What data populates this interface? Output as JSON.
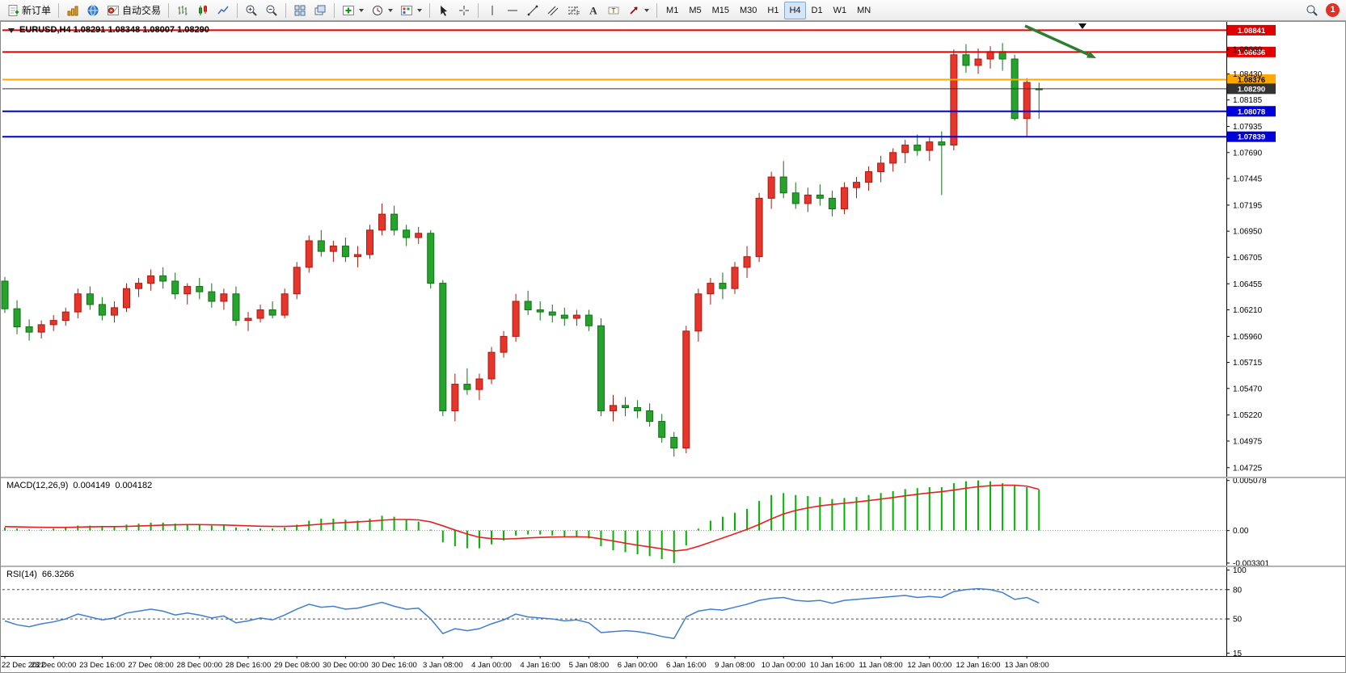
{
  "toolbar": {
    "new_order_label": "新订单",
    "auto_trading_label": "自动交易",
    "timeframes": [
      "M1",
      "M5",
      "M15",
      "M30",
      "H1",
      "H4",
      "D1",
      "W1",
      "MN"
    ],
    "active_timeframe": "H4",
    "notification_badge": "1"
  },
  "chart": {
    "title": "EURUSD,H4 1.08291 1.08348 1.08007 1.08290",
    "macd_label": "MACD(12,26,9)",
    "macd_value_main": "0.004149",
    "macd_value_signal": "0.004182",
    "rsi_label": "RSI(14)",
    "rsi_value": "66.3266"
  },
  "chart_data": {
    "type": "candlestick",
    "symbol": "EURUSD",
    "period": "H4",
    "current_bar": {
      "open": 1.08291,
      "high": 1.08348,
      "low": 1.08007,
      "close": 1.0829
    },
    "price_range": [
      1.0464,
      1.0892
    ],
    "up_color": "#e6352b",
    "up_stroke": "#ab1a10",
    "down_color": "#25a32d",
    "down_stroke": "#127016",
    "candles": [
      [
        1.0648,
        1.0652,
        1.0618,
        1.0622
      ],
      [
        1.0622,
        1.063,
        1.0598,
        1.0605
      ],
      [
        1.0605,
        1.0612,
        1.0592,
        1.06
      ],
      [
        1.06,
        1.0611,
        1.0594,
        1.0607
      ],
      [
        1.0607,
        1.0616,
        1.0601,
        1.0611
      ],
      [
        1.0611,
        1.0623,
        1.0606,
        1.0619
      ],
      [
        1.0619,
        1.0641,
        1.0613,
        1.0636
      ],
      [
        1.0636,
        1.0643,
        1.0621,
        1.0626
      ],
      [
        1.0626,
        1.0633,
        1.0611,
        1.0616
      ],
      [
        1.0616,
        1.0629,
        1.0609,
        1.0623
      ],
      [
        1.0623,
        1.0646,
        1.0619,
        1.0641
      ],
      [
        1.0641,
        1.0651,
        1.0633,
        1.0646
      ],
      [
        1.0646,
        1.0659,
        1.0639,
        1.0653
      ],
      [
        1.0653,
        1.0661,
        1.0641,
        1.0648
      ],
      [
        1.0648,
        1.0656,
        1.0631,
        1.0636
      ],
      [
        1.0636,
        1.0646,
        1.0626,
        1.0643
      ],
      [
        1.0643,
        1.0651,
        1.0631,
        1.0638
      ],
      [
        1.0638,
        1.0646,
        1.0623,
        1.0629
      ],
      [
        1.0629,
        1.0641,
        1.0621,
        1.0636
      ],
      [
        1.0636,
        1.0643,
        1.0606,
        1.0611
      ],
      [
        1.0611,
        1.0619,
        1.0601,
        1.0613
      ],
      [
        1.0613,
        1.0626,
        1.0609,
        1.0621
      ],
      [
        1.0621,
        1.0629,
        1.0613,
        1.0616
      ],
      [
        1.0616,
        1.0641,
        1.0613,
        1.0636
      ],
      [
        1.0636,
        1.0666,
        1.0631,
        1.0661
      ],
      [
        1.0661,
        1.0691,
        1.0656,
        1.0686
      ],
      [
        1.0686,
        1.0696,
        1.0671,
        1.0676
      ],
      [
        1.0676,
        1.0686,
        1.0666,
        1.0681
      ],
      [
        1.0681,
        1.0689,
        1.0666,
        1.0671
      ],
      [
        1.0671,
        1.0681,
        1.0661,
        1.0673
      ],
      [
        1.0673,
        1.0701,
        1.0669,
        1.0696
      ],
      [
        1.0696,
        1.0721,
        1.0691,
        1.0711
      ],
      [
        1.0711,
        1.0719,
        1.0691,
        1.0696
      ],
      [
        1.0696,
        1.0701,
        1.0681,
        1.0689
      ],
      [
        1.0689,
        1.0699,
        1.0683,
        1.0693
      ],
      [
        1.0693,
        1.0696,
        1.0641,
        1.0646
      ],
      [
        1.0646,
        1.0649,
        1.0521,
        1.0526
      ],
      [
        1.0526,
        1.0561,
        1.0516,
        1.0551
      ],
      [
        1.0551,
        1.0566,
        1.0541,
        1.0546
      ],
      [
        1.0546,
        1.0561,
        1.0536,
        1.0556
      ],
      [
        1.0556,
        1.0586,
        1.0551,
        1.0581
      ],
      [
        1.0581,
        1.0601,
        1.0576,
        1.0596
      ],
      [
        1.0596,
        1.0636,
        1.0591,
        1.0629
      ],
      [
        1.0629,
        1.0639,
        1.0616,
        1.0621
      ],
      [
        1.0621,
        1.0629,
        1.0611,
        1.0619
      ],
      [
        1.0619,
        1.0626,
        1.0609,
        1.0616
      ],
      [
        1.0616,
        1.0623,
        1.0606,
        1.0613
      ],
      [
        1.0613,
        1.0621,
        1.0606,
        1.0616
      ],
      [
        1.0616,
        1.0621,
        1.0601,
        1.0606
      ],
      [
        1.0606,
        1.0613,
        1.0521,
        1.0526
      ],
      [
        1.0526,
        1.0541,
        1.0516,
        1.0531
      ],
      [
        1.0531,
        1.0539,
        1.0521,
        1.0529
      ],
      [
        1.0529,
        1.0536,
        1.0519,
        1.0526
      ],
      [
        1.0526,
        1.0533,
        1.0511,
        1.0516
      ],
      [
        1.0516,
        1.0523,
        1.0496,
        1.0501
      ],
      [
        1.0501,
        1.0506,
        1.0483,
        1.0491
      ],
      [
        1.0491,
        1.0606,
        1.0486,
        1.0601
      ],
      [
        1.0601,
        1.0641,
        1.0591,
        1.0636
      ],
      [
        1.0636,
        1.0651,
        1.0626,
        1.0646
      ],
      [
        1.0646,
        1.0656,
        1.0631,
        1.0641
      ],
      [
        1.0641,
        1.0666,
        1.0636,
        1.0661
      ],
      [
        1.0661,
        1.0681,
        1.0651,
        1.0671
      ],
      [
        1.0671,
        1.0731,
        1.0666,
        1.0726
      ],
      [
        1.0726,
        1.0751,
        1.0716,
        1.0746
      ],
      [
        1.0746,
        1.0761,
        1.0726,
        1.0731
      ],
      [
        1.0731,
        1.0741,
        1.0716,
        1.0721
      ],
      [
        1.0721,
        1.0736,
        1.0713,
        1.0729
      ],
      [
        1.0729,
        1.0739,
        1.0719,
        1.0726
      ],
      [
        1.0726,
        1.0733,
        1.0709,
        1.0716
      ],
      [
        1.0716,
        1.0741,
        1.0711,
        1.0736
      ],
      [
        1.0736,
        1.0746,
        1.0726,
        1.0741
      ],
      [
        1.0741,
        1.0756,
        1.0733,
        1.0751
      ],
      [
        1.0751,
        1.0766,
        1.0741,
        1.0759
      ],
      [
        1.0759,
        1.0773,
        1.0751,
        1.0769
      ],
      [
        1.0769,
        1.0781,
        1.0759,
        1.0776
      ],
      [
        1.0776,
        1.0786,
        1.0766,
        1.0771
      ],
      [
        1.0771,
        1.0783,
        1.0761,
        1.0779
      ],
      [
        1.0779,
        1.0789,
        1.0729,
        1.0776
      ],
      [
        1.0776,
        1.0866,
        1.0771,
        1.0861
      ],
      [
        1.0861,
        1.0871,
        1.0844,
        1.0851
      ],
      [
        1.0851,
        1.0867,
        1.0843,
        1.0857
      ],
      [
        1.0857,
        1.0869,
        1.0848,
        1.0864
      ],
      [
        1.0864,
        1.0872,
        1.0846,
        1.0857
      ],
      [
        1.0857,
        1.0861,
        1.0799,
        1.0801
      ],
      [
        1.0801,
        1.0839,
        1.0784,
        1.0835
      ],
      [
        1.08291,
        1.08348,
        1.08007,
        1.0829
      ]
    ],
    "label_every_n_bars": 4,
    "time_labels": [
      "22 Dec 2022",
      "23 Dec 00:00",
      "23 Dec 16:00",
      "27 Dec 08:00",
      "28 Dec 00:00",
      "28 Dec 16:00",
      "29 Dec 08:00",
      "30 Dec 00:00",
      "30 Dec 16:00",
      "3 Jan 08:00",
      "4 Jan 00:00",
      "4 Jan 16:00",
      "5 Jan 08:00",
      "6 Jan 00:00",
      "6 Jan 16:00",
      "9 Jan 08:00",
      "10 Jan 00:00",
      "10 Jan 16:00",
      "11 Jan 08:00",
      "12 Jan 00:00",
      "12 Jan 16:00",
      "13 Jan 08:00"
    ],
    "price_axis_ticks": [
      "1.08660",
      "1.08430",
      "1.08185",
      "1.07935",
      "1.07690",
      "1.07445",
      "1.07195",
      "1.06950",
      "1.06705",
      "1.06455",
      "1.06210",
      "1.05960",
      "1.05715",
      "1.05470",
      "1.05220",
      "1.04975",
      "1.04725"
    ],
    "hlines": [
      {
        "name": "resistance-line-1",
        "price": 1.08841,
        "label": "1.08841",
        "color": "#e00000",
        "width": 2,
        "text_color": "#ffffff"
      },
      {
        "name": "resistance-line-2",
        "price": 1.08636,
        "label": "1.08636",
        "color": "#e00000",
        "width": 2,
        "text_color": "#ffffff"
      },
      {
        "name": "orange-level-line",
        "price": 1.08376,
        "label": "1.08376",
        "color": "#ffa800",
        "width": 2,
        "text_color": "#000000"
      },
      {
        "name": "bid-price-line",
        "price": 1.0829,
        "label": "1.08290",
        "color": "#333333",
        "width": 1,
        "text_color": "#ffffff"
      },
      {
        "name": "support-line-1",
        "price": 1.08078,
        "label": "1.08078",
        "color": "#0000d8",
        "width": 2,
        "text_color": "#ffffff"
      },
      {
        "name": "support-line-2",
        "price": 1.07839,
        "label": "1.07839",
        "color": "#0000d8",
        "width": 2,
        "text_color": "#ffffff"
      }
    ],
    "arrow_annotation": {
      "from": [
        1268,
        6
      ],
      "to": [
        1356,
        46
      ],
      "color": "#2e7d32"
    },
    "macd": {
      "label": "MACD(12,26,9)",
      "hist_color": "#00b400",
      "signal_color": "#e52222",
      "scale": [
        {
          "label": "0.005078",
          "value": 0.005078
        },
        {
          "label": "0.00",
          "value": 0
        },
        {
          "label": "-0.003301",
          "value": -0.003301
        }
      ],
      "histogram": [
        0.0003,
        0.0002,
        0.0001,
        0.0001,
        0.0002,
        0.0003,
        0.0005,
        0.0005,
        0.0004,
        0.0004,
        0.0006,
        0.0007,
        0.0008,
        0.0008,
        0.0007,
        0.0006,
        0.0006,
        0.0005,
        0.0005,
        0.0003,
        0.0002,
        0.0002,
        0.0002,
        0.0003,
        0.0006,
        0.001,
        0.0012,
        0.0012,
        0.0011,
        0.001,
        0.0012,
        0.0015,
        0.0014,
        0.0011,
        0.0009,
        0.0001,
        -0.0012,
        -0.0016,
        -0.0018,
        -0.0018,
        -0.0014,
        -0.001,
        -0.0005,
        -0.0004,
        -0.0004,
        -0.0005,
        -0.0006,
        -0.0006,
        -0.0008,
        -0.0016,
        -0.002,
        -0.0022,
        -0.0024,
        -0.0026,
        -0.0029,
        -0.0033,
        -0.0015,
        0.0002,
        0.001,
        0.0014,
        0.0018,
        0.0022,
        0.003,
        0.0036,
        0.0038,
        0.0036,
        0.0035,
        0.0034,
        0.0032,
        0.0033,
        0.0034,
        0.0036,
        0.0038,
        0.004,
        0.0042,
        0.0043,
        0.0044,
        0.0044,
        0.0048,
        0.005,
        0.00508,
        0.005,
        0.0048,
        0.0046,
        0.0044,
        0.004149
      ],
      "signal": [
        0.0004,
        0.00038,
        0.00035,
        0.00033,
        0.00032,
        0.00032,
        0.00035,
        0.00038,
        0.0004,
        0.0004,
        0.00042,
        0.00046,
        0.0005,
        0.00055,
        0.00058,
        0.0006,
        0.0006,
        0.00058,
        0.00056,
        0.00052,
        0.00048,
        0.00044,
        0.00042,
        0.00042,
        0.00046,
        0.00055,
        0.00065,
        0.00075,
        0.00082,
        0.00088,
        0.00095,
        0.00105,
        0.00112,
        0.00112,
        0.00108,
        0.00088,
        0.00048,
        5e-05,
        -0.00035,
        -0.00068,
        -0.00082,
        -0.00086,
        -0.00082,
        -0.00075,
        -0.0007,
        -0.00066,
        -0.00064,
        -0.00063,
        -0.00066,
        -0.00085,
        -0.00106,
        -0.00128,
        -0.00148,
        -0.00166,
        -0.00185,
        -0.00208,
        -0.00195,
        -0.0016,
        -0.00118,
        -0.00075,
        -0.00032,
        0.00012,
        0.00062,
        0.00118,
        0.00168,
        0.00204,
        0.0023,
        0.0025,
        0.00264,
        0.00277,
        0.0029,
        0.00304,
        0.00319,
        0.00335,
        0.00352,
        0.00368,
        0.00382,
        0.00394,
        0.00411,
        0.00429,
        0.00445,
        0.00455,
        0.0046,
        0.0046,
        0.0045,
        0.004182
      ]
    },
    "rsi": {
      "label": "RSI(14)",
      "line_color": "#3f7fce",
      "levels": [
        80,
        50
      ],
      "scale": [
        {
          "label": "100",
          "value": 100
        },
        {
          "label": "80",
          "value": 80
        },
        {
          "label": "50",
          "value": 50
        },
        {
          "label": "15",
          "value": 15
        }
      ],
      "values": [
        48,
        44,
        42,
        45,
        47,
        50,
        55,
        52,
        49,
        51,
        56,
        58,
        60,
        58,
        54,
        56,
        54,
        51,
        53,
        46,
        48,
        51,
        49,
        54,
        60,
        65,
        62,
        63,
        60,
        61,
        64,
        67,
        63,
        60,
        61,
        50,
        35,
        40,
        38,
        40,
        45,
        49,
        55,
        52,
        51,
        50,
        48,
        49,
        46,
        36,
        37,
        38,
        37,
        35,
        32,
        30,
        52,
        58,
        60,
        59,
        62,
        65,
        69,
        71,
        72,
        69,
        68,
        69,
        66,
        69,
        70,
        71,
        72,
        73,
        74,
        72,
        73,
        72,
        78,
        80,
        81,
        80,
        77,
        70,
        72,
        66.3266
      ]
    }
  }
}
